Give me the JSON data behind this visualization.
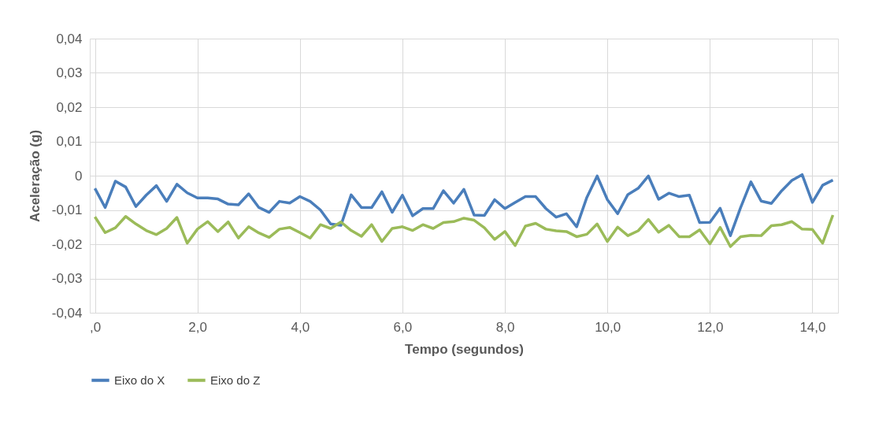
{
  "chart_data": {
    "type": "line",
    "xlabel": "Tempo (segundos)",
    "ylabel": "Aceleração (g)",
    "x": [
      0,
      0.2,
      0.4,
      0.6,
      0.8,
      1.0,
      1.2,
      1.4,
      1.6,
      1.8,
      2.0,
      2.2,
      2.4,
      2.6,
      2.8,
      3.0,
      3.2,
      3.4,
      3.6,
      3.8,
      4.0,
      4.2,
      4.4,
      4.6,
      4.8,
      5.0,
      5.2,
      5.4,
      5.6,
      5.8,
      6.0,
      6.2,
      6.4,
      6.6,
      6.8,
      7.0,
      7.2,
      7.4,
      7.6,
      7.8,
      8.0,
      8.2,
      8.4,
      8.6,
      8.8,
      9.0,
      9.2,
      9.4,
      9.6,
      9.8,
      10.0,
      10.2,
      10.4,
      10.6,
      10.8,
      11.0,
      11.2,
      11.4,
      11.6,
      11.8,
      12.0,
      12.2,
      12.4,
      12.6,
      12.8,
      13.0,
      13.2,
      13.4,
      13.6,
      13.8,
      14.0,
      14.2,
      14.4
    ],
    "series": [
      {
        "name": "Eixo do X",
        "color": "#4a7ebb",
        "values": [
          -0.0037,
          -0.0093,
          -0.0016,
          -0.0033,
          -0.009,
          -0.0057,
          -0.0029,
          -0.0075,
          -0.0025,
          -0.005,
          -0.0065,
          -0.0065,
          -0.0068,
          -0.0083,
          -0.0085,
          -0.0053,
          -0.0093,
          -0.0107,
          -0.0075,
          -0.008,
          -0.0061,
          -0.0075,
          -0.01,
          -0.0141,
          -0.0145,
          -0.0056,
          -0.0093,
          -0.0093,
          -0.0047,
          -0.0107,
          -0.0057,
          -0.0117,
          -0.0096,
          -0.0096,
          -0.0044,
          -0.008,
          -0.004,
          -0.0115,
          -0.0116,
          -0.007,
          -0.0096,
          -0.0078,
          -0.0061,
          -0.0061,
          -0.0096,
          -0.0121,
          -0.0111,
          -0.0149,
          -0.0063,
          -0.0001,
          -0.007,
          -0.0111,
          -0.0055,
          -0.0037,
          -0.0001,
          -0.0069,
          -0.0051,
          -0.0061,
          -0.0057,
          -0.0137,
          -0.0136,
          -0.0095,
          -0.0175,
          -0.0093,
          -0.0018,
          -0.0074,
          -0.0081,
          -0.0044,
          -0.0014,
          0.0003,
          -0.0078,
          -0.0028,
          -0.0013
        ]
      },
      {
        "name": "Eixo do Z",
        "color": "#9bbb59",
        "values": [
          -0.012,
          -0.0166,
          -0.0152,
          -0.0119,
          -0.0141,
          -0.016,
          -0.0172,
          -0.0154,
          -0.0122,
          -0.0197,
          -0.0156,
          -0.0134,
          -0.0163,
          -0.0135,
          -0.0182,
          -0.0149,
          -0.0167,
          -0.018,
          -0.0156,
          -0.0151,
          -0.0166,
          -0.0182,
          -0.0143,
          -0.0154,
          -0.0135,
          -0.016,
          -0.0177,
          -0.0143,
          -0.0192,
          -0.0154,
          -0.0149,
          -0.016,
          -0.0143,
          -0.0154,
          -0.0137,
          -0.0134,
          -0.0124,
          -0.013,
          -0.0152,
          -0.0186,
          -0.0163,
          -0.0204,
          -0.0147,
          -0.0139,
          -0.0156,
          -0.0161,
          -0.0163,
          -0.0178,
          -0.0171,
          -0.0141,
          -0.0192,
          -0.015,
          -0.0175,
          -0.0161,
          -0.0128,
          -0.0165,
          -0.0145,
          -0.0178,
          -0.0178,
          -0.0158,
          -0.0199,
          -0.0151,
          -0.0207,
          -0.0178,
          -0.0174,
          -0.0175,
          -0.0146,
          -0.0143,
          -0.0134,
          -0.0156,
          -0.0157,
          -0.0197,
          -0.0115
        ]
      }
    ],
    "xlim": [
      -0.1,
      14.5
    ],
    "xticks": [
      {
        "value": 0,
        "label": ",0"
      },
      {
        "value": 2,
        "label": "2,0"
      },
      {
        "value": 4,
        "label": "4,0"
      },
      {
        "value": 6,
        "label": "6,0"
      },
      {
        "value": 8,
        "label": "8,0"
      },
      {
        "value": 10,
        "label": "10,0"
      },
      {
        "value": 12,
        "label": "12,0"
      },
      {
        "value": 14,
        "label": "14,0"
      }
    ],
    "ylim": [
      -0.04,
      0.04
    ],
    "yticks": [
      {
        "value": 0.04,
        "label": "0,04"
      },
      {
        "value": 0.03,
        "label": "0,03"
      },
      {
        "value": 0.02,
        "label": "0,02"
      },
      {
        "value": 0.01,
        "label": "0,01"
      },
      0,
      {
        "value": -0.01,
        "label": "-0,01"
      },
      {
        "value": -0.02,
        "label": "-0,02"
      },
      {
        "value": -0.03,
        "label": "-0,03"
      },
      {
        "value": -0.04,
        "label": "-0,04"
      }
    ],
    "grid": true,
    "legend": "bottom",
    "marker": "none",
    "line_style": "solid"
  }
}
